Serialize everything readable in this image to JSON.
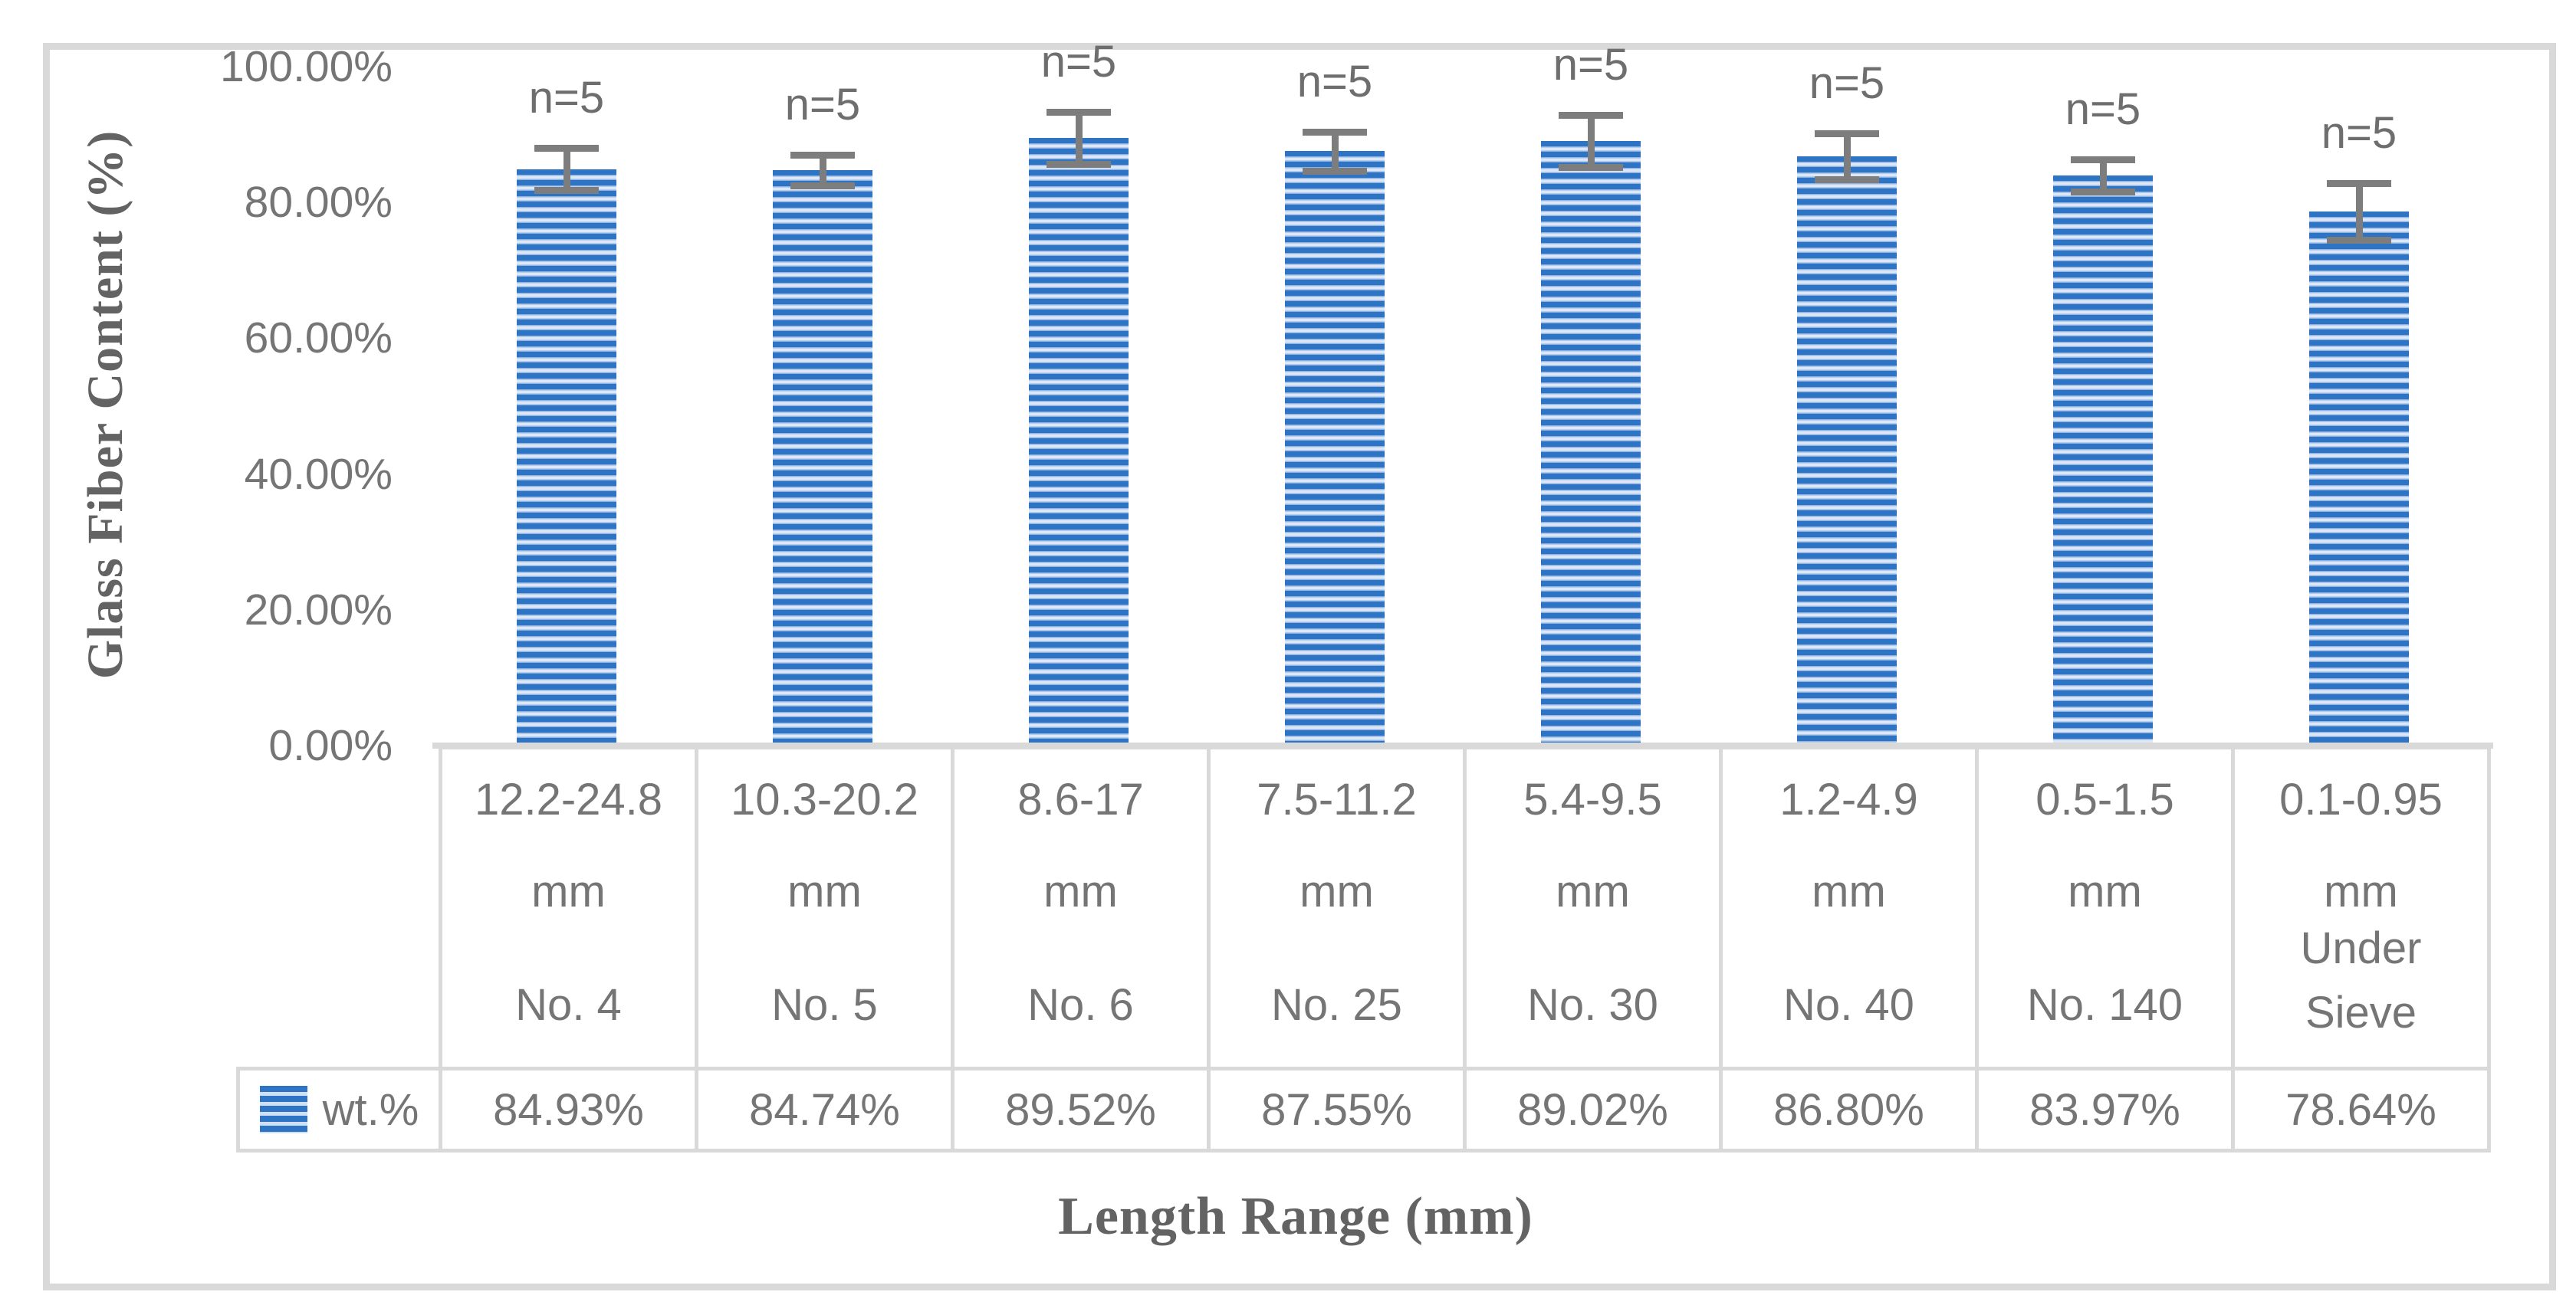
{
  "chart_data": {
    "type": "bar",
    "title": "",
    "ylabel": "Glass Fiber Content (%)",
    "xlabel": "Length Range (mm)",
    "ylim": [
      0,
      100
    ],
    "grid": false,
    "legend": {
      "name": "wt.%",
      "position": "table-row-header"
    },
    "yticks": [
      {
        "value": 100,
        "label": "100.00%"
      },
      {
        "value": 80,
        "label": "80.00%"
      },
      {
        "value": 60,
        "label": "60.00%"
      },
      {
        "value": 40,
        "label": "40.00%"
      },
      {
        "value": 20,
        "label": "20.00%"
      },
      {
        "value": 0,
        "label": "0.00%"
      }
    ],
    "series": [
      {
        "name": "wt.%",
        "values": [
          84.93,
          84.74,
          89.52,
          87.55,
          89.02,
          86.8,
          83.97,
          78.64
        ]
      }
    ],
    "categories": [
      {
        "range": "12.2-24.8",
        "unit": "mm",
        "sieve": "No. 4",
        "value": 84.93,
        "value_label": "84.93%",
        "error": 2.6,
        "count_label": "n=5"
      },
      {
        "range": "10.3-20.2",
        "unit": "mm",
        "sieve": "No. 5",
        "value": 84.74,
        "value_label": "84.74%",
        "error": 1.8,
        "count_label": "n=5"
      },
      {
        "range": "8.6-17",
        "unit": "mm",
        "sieve": "No. 6",
        "value": 89.52,
        "value_label": "89.52%",
        "error": 3.4,
        "count_label": "n=5"
      },
      {
        "range": "7.5-11.2",
        "unit": "mm",
        "sieve": "No. 25",
        "value": 87.55,
        "value_label": "87.55%",
        "error": 2.4,
        "count_label": "n=5"
      },
      {
        "range": "5.4-9.5",
        "unit": "mm",
        "sieve": "No. 30",
        "value": 89.02,
        "value_label": "89.02%",
        "error": 3.4,
        "count_label": "n=5"
      },
      {
        "range": "1.2-4.9",
        "unit": "mm",
        "sieve": "No. 40",
        "value": 86.8,
        "value_label": "86.80%",
        "error": 2.9,
        "count_label": "n=5"
      },
      {
        "range": "0.5-1.5",
        "unit": "mm",
        "sieve": "No. 140",
        "value": 83.97,
        "value_label": "83.97%",
        "error": 1.9,
        "count_label": "n=5"
      },
      {
        "range": "0.1-0.95",
        "unit": "mm",
        "sieve": "Under Sieve",
        "value": 78.64,
        "value_label": "78.64%",
        "error": 3.7,
        "count_label": "n=5"
      }
    ],
    "colors": {
      "bar_stripe_blue": "#2e74c4",
      "bar_stripe_light": "#dce8f8",
      "error_bar": "#7d7d7d",
      "text_gray": "#757575",
      "axis_title_gray": "#636363",
      "border_gray": "#d9d9d9"
    }
  }
}
